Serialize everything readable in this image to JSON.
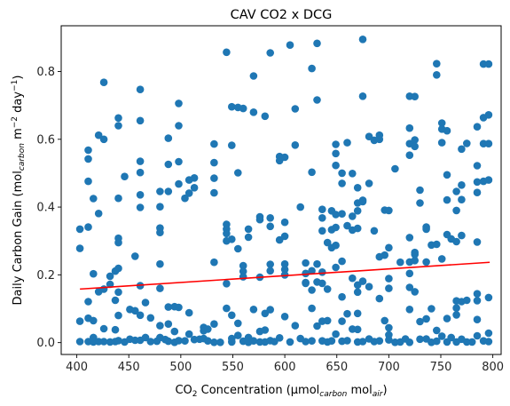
{
  "chart_data": {
    "type": "scatter",
    "title": "CAV CO2 x DCG",
    "xlabel": {
      "prefix": "CO",
      "sub1": "2",
      "mid": " Concentration (μmol",
      "sub2": "carbon",
      "mid2": " mol",
      "sub3": "air",
      "suffix": ")"
    },
    "ylabel": {
      "prefix": "Daily Carbon Gain (mol",
      "sub1": "carbon",
      "mid": " m",
      "sup1": "−2",
      "mid2": " day",
      "sup2": "−1",
      "suffix": ")"
    },
    "xlim": [
      385,
      808
    ],
    "ylim": [
      -0.035,
      0.935
    ],
    "xticks": [
      400,
      450,
      500,
      550,
      600,
      650,
      700,
      750,
      800
    ],
    "yticks": [
      0.0,
      0.2,
      0.4,
      0.6,
      0.8
    ],
    "ytick_labels": [
      "0.0",
      "0.2",
      "0.4",
      "0.6",
      "0.8"
    ],
    "colors": {
      "points": "#1f77b4",
      "trend": "#ff0000"
    },
    "trendline": {
      "x": [
        403,
        797
      ],
      "y": [
        0.158,
        0.237
      ]
    },
    "points": [
      [
        403,
        0.335
      ],
      [
        403,
        0.278
      ],
      [
        403,
        0.063
      ],
      [
        403,
        0.003
      ],
      [
        411,
        0.568
      ],
      [
        411,
        0.542
      ],
      [
        411,
        0.476
      ],
      [
        411,
        0.341
      ],
      [
        411,
        0.121
      ],
      [
        411,
        0.072
      ],
      [
        411,
        0.003
      ],
      [
        416,
        0.425
      ],
      [
        416,
        0.203
      ],
      [
        416,
        0.065
      ],
      [
        416,
        0.015
      ],
      [
        416,
        0.002
      ],
      [
        421,
        0.612
      ],
      [
        421,
        0.381
      ],
      [
        421,
        0.15
      ],
      [
        421,
        0.003
      ],
      [
        426,
        0.768
      ],
      [
        426,
        0.6
      ],
      [
        426,
        0.158
      ],
      [
        426,
        0.041
      ],
      [
        426,
        0.003
      ],
      [
        432,
        0.196
      ],
      [
        432,
        0.172
      ],
      [
        432,
        0.002
      ],
      [
        437,
        0.211
      ],
      [
        437,
        0.125
      ],
      [
        437,
        0.038
      ],
      [
        437,
        0.003
      ],
      [
        440,
        0.663
      ],
      [
        440,
        0.64
      ],
      [
        440,
        0.426
      ],
      [
        440,
        0.308
      ],
      [
        440,
        0.295
      ],
      [
        440,
        0.219
      ],
      [
        440,
        0.149
      ],
      [
        440,
        0.08
      ],
      [
        440,
        0.006
      ],
      [
        446,
        0.49
      ],
      [
        446,
        0.002
      ],
      [
        451,
        0.098
      ],
      [
        451,
        0.01
      ],
      [
        456,
        0.255
      ],
      [
        456,
        0.094
      ],
      [
        456,
        0.007
      ],
      [
        461,
        0.747
      ],
      [
        461,
        0.655
      ],
      [
        461,
        0.535
      ],
      [
        461,
        0.502
      ],
      [
        461,
        0.436
      ],
      [
        461,
        0.399
      ],
      [
        461,
        0.168
      ],
      [
        461,
        0.081
      ],
      [
        461,
        0.007
      ],
      [
        466,
        0.118
      ],
      [
        466,
        0.015
      ],
      [
        471,
        0.073
      ],
      [
        471,
        0.003
      ],
      [
        477,
        0.004
      ],
      [
        480,
        0.446
      ],
      [
        480,
        0.401
      ],
      [
        480,
        0.338
      ],
      [
        480,
        0.325
      ],
      [
        480,
        0.232
      ],
      [
        480,
        0.16
      ],
      [
        480,
        0.05
      ],
      [
        480,
        0.015
      ],
      [
        485,
        0.009
      ],
      [
        488,
        0.603
      ],
      [
        488,
        0.526
      ],
      [
        488,
        0.446
      ],
      [
        488,
        0.105
      ],
      [
        488,
        0.055
      ],
      [
        488,
        0.004
      ],
      [
        494,
        0.106
      ],
      [
        494,
        0.033
      ],
      [
        494,
        0.001
      ],
      [
        498,
        0.706
      ],
      [
        498,
        0.64
      ],
      [
        498,
        0.534
      ],
      [
        498,
        0.468
      ],
      [
        498,
        0.104
      ],
      [
        498,
        0.006
      ],
      [
        504,
        0.426
      ],
      [
        504,
        0.005
      ],
      [
        508,
        0.48
      ],
      [
        508,
        0.441
      ],
      [
        508,
        0.088
      ],
      [
        508,
        0.025
      ],
      [
        513,
        0.486
      ],
      [
        513,
        0.457
      ],
      [
        513,
        0.009
      ],
      [
        518,
        0.01
      ],
      [
        522,
        0.045
      ],
      [
        522,
        0.035
      ],
      [
        522,
        0.012
      ],
      [
        526,
        0.04
      ],
      [
        526,
        0.005
      ],
      [
        532,
        0.586
      ],
      [
        532,
        0.531
      ],
      [
        532,
        0.485
      ],
      [
        532,
        0.442
      ],
      [
        532,
        0.237
      ],
      [
        532,
        0.055
      ],
      [
        532,
        0.001
      ],
      [
        538,
        0.001
      ],
      [
        544,
        0.857
      ],
      [
        544,
        0.349
      ],
      [
        544,
        0.335
      ],
      [
        544,
        0.322
      ],
      [
        544,
        0.3
      ],
      [
        544,
        0.174
      ],
      [
        544,
        0.101
      ],
      [
        549,
        0.696
      ],
      [
        549,
        0.582
      ],
      [
        549,
        0.305
      ],
      [
        549,
        0.081
      ],
      [
        549,
        0.012
      ],
      [
        549,
        0.002
      ],
      [
        555,
        0.694
      ],
      [
        555,
        0.501
      ],
      [
        555,
        0.277
      ],
      [
        555,
        0.057
      ],
      [
        555,
        0.021
      ],
      [
        560,
        0.691
      ],
      [
        560,
        0.227
      ],
      [
        560,
        0.21
      ],
      [
        560,
        0.194
      ],
      [
        560,
        0.004
      ],
      [
        565,
        0.335
      ],
      [
        565,
        0.311
      ],
      [
        565,
        0.015
      ],
      [
        565,
        0.001
      ],
      [
        570,
        0.787
      ],
      [
        570,
        0.68
      ],
      [
        570,
        0.098
      ],
      [
        570,
        0.005
      ],
      [
        576,
        0.371
      ],
      [
        576,
        0.363
      ],
      [
        576,
        0.193
      ],
      [
        576,
        0.033
      ],
      [
        576,
        0.002
      ],
      [
        581,
        0.668
      ],
      [
        581,
        0.086
      ],
      [
        581,
        0.037
      ],
      [
        581,
        0.002
      ],
      [
        586,
        0.855
      ],
      [
        586,
        0.368
      ],
      [
        586,
        0.343
      ],
      [
        586,
        0.231
      ],
      [
        586,
        0.212
      ],
      [
        586,
        0.097
      ],
      [
        586,
        0.006
      ],
      [
        590,
        0.003
      ],
      [
        595,
        0.549
      ],
      [
        595,
        0.537
      ],
      [
        595,
        0.303
      ],
      [
        595,
        0.014
      ],
      [
        600,
        0.547
      ],
      [
        600,
        0.355
      ],
      [
        600,
        0.314
      ],
      [
        600,
        0.232
      ],
      [
        600,
        0.216
      ],
      [
        600,
        0.2
      ],
      [
        600,
        0.077
      ],
      [
        605,
        0.878
      ],
      [
        605,
        0.002
      ],
      [
        610,
        0.69
      ],
      [
        610,
        0.583
      ],
      [
        610,
        0.05
      ],
      [
        615,
        0.4
      ],
      [
        615,
        0.012
      ],
      [
        620,
        0.235
      ],
      [
        620,
        0.204
      ],
      [
        620,
        0.177
      ],
      [
        620,
        0.175
      ],
      [
        620,
        0.003
      ],
      [
        626,
        0.809
      ],
      [
        626,
        0.503
      ],
      [
        626,
        0.212
      ],
      [
        626,
        0.155
      ],
      [
        626,
        0.101
      ],
      [
        626,
        0.005
      ],
      [
        631,
        0.883
      ],
      [
        631,
        0.716
      ],
      [
        631,
        0.232
      ],
      [
        631,
        0.179
      ],
      [
        631,
        0.049
      ],
      [
        636,
        0.393
      ],
      [
        636,
        0.368
      ],
      [
        636,
        0.33
      ],
      [
        636,
        0.208
      ],
      [
        636,
        0.175
      ],
      [
        636,
        0.063
      ],
      [
        636,
        0.005
      ],
      [
        641,
        0.295
      ],
      [
        641,
        0.158
      ],
      [
        641,
        0.065
      ],
      [
        641,
        0.002
      ],
      [
        645,
        0.389
      ],
      [
        645,
        0.333
      ],
      [
        645,
        0.28
      ],
      [
        645,
        0.005
      ],
      [
        649,
        0.585
      ],
      [
        649,
        0.558
      ],
      [
        649,
        0.523
      ],
      [
        649,
        0.378
      ],
      [
        649,
        0.34
      ],
      [
        649,
        0.287
      ],
      [
        649,
        0.222
      ],
      [
        649,
        0.025
      ],
      [
        655,
        0.5
      ],
      [
        655,
        0.47
      ],
      [
        655,
        0.38
      ],
      [
        655,
        0.24
      ],
      [
        655,
        0.135
      ],
      [
        655,
        0.063
      ],
      [
        655,
        0.004
      ],
      [
        660,
        0.59
      ],
      [
        660,
        0.345
      ],
      [
        660,
        0.085
      ],
      [
        660,
        0.006
      ],
      [
        665,
        0.499
      ],
      [
        665,
        0.373
      ],
      [
        665,
        0.332
      ],
      [
        665,
        0.19
      ],
      [
        665,
        0.04
      ],
      [
        670,
        0.457
      ],
      [
        670,
        0.412
      ],
      [
        670,
        0.389
      ],
      [
        670,
        0.337
      ],
      [
        670,
        0.17
      ],
      [
        670,
        0.149
      ],
      [
        670,
        0.086
      ],
      [
        670,
        0.039
      ],
      [
        670,
        0.002
      ],
      [
        675,
        0.895
      ],
      [
        675,
        0.727
      ],
      [
        675,
        0.42
      ],
      [
        675,
        0.416
      ],
      [
        675,
        0.181
      ],
      [
        675,
        0.003
      ],
      [
        681,
        0.608
      ],
      [
        681,
        0.47
      ],
      [
        681,
        0.165
      ],
      [
        681,
        0.011
      ],
      [
        686,
        0.597
      ],
      [
        686,
        0.33
      ],
      [
        686,
        0.003
      ],
      [
        691,
        0.612
      ],
      [
        691,
        0.6
      ],
      [
        691,
        0.253
      ],
      [
        691,
        0.13
      ],
      [
        691,
        0.005
      ],
      [
        696,
        0.391
      ],
      [
        696,
        0.258
      ],
      [
        696,
        0.065
      ],
      [
        700,
        0.39
      ],
      [
        700,
        0.28
      ],
      [
        700,
        0.189
      ],
      [
        700,
        0.16
      ],
      [
        700,
        0.044
      ],
      [
        700,
        0.023
      ],
      [
        700,
        0.008
      ],
      [
        706,
        0.513
      ],
      [
        706,
        0.001
      ],
      [
        711,
        0.237
      ],
      [
        711,
        0.002
      ],
      [
        716,
        0.011
      ],
      [
        720,
        0.727
      ],
      [
        720,
        0.633
      ],
      [
        720,
        0.587
      ],
      [
        720,
        0.553
      ],
      [
        720,
        0.31
      ],
      [
        720,
        0.238
      ],
      [
        720,
        0.204
      ],
      [
        720,
        0.163
      ],
      [
        720,
        0.098
      ],
      [
        720,
        0.001
      ],
      [
        725,
        0.726
      ],
      [
        725,
        0.598
      ],
      [
        725,
        0.579
      ],
      [
        725,
        0.266
      ],
      [
        725,
        0.26
      ],
      [
        725,
        0.242
      ],
      [
        725,
        0.15
      ],
      [
        730,
        0.45
      ],
      [
        730,
        0.412
      ],
      [
        730,
        0.062
      ],
      [
        730,
        0.01
      ],
      [
        736,
        0.341
      ],
      [
        736,
        0.335
      ],
      [
        736,
        0.238
      ],
      [
        736,
        0.07
      ],
      [
        736,
        0.011
      ],
      [
        741,
        0.288
      ],
      [
        741,
        0.1
      ],
      [
        741,
        0.001
      ],
      [
        746,
        0.823
      ],
      [
        746,
        0.79
      ],
      [
        746,
        0.29
      ],
      [
        746,
        0.036
      ],
      [
        746,
        0.004
      ],
      [
        751,
        0.648
      ],
      [
        751,
        0.63
      ],
      [
        751,
        0.59
      ],
      [
        751,
        0.247
      ],
      [
        751,
        0.019
      ],
      [
        756,
        0.625
      ],
      [
        756,
        0.495
      ],
      [
        756,
        0.421
      ],
      [
        756,
        0.319
      ],
      [
        756,
        0.071
      ],
      [
        756,
        0.002
      ],
      [
        760,
        0.306
      ],
      [
        760,
        0.015
      ],
      [
        765,
        0.446
      ],
      [
        765,
        0.39
      ],
      [
        765,
        0.298
      ],
      [
        765,
        0.123
      ],
      [
        765,
        0.102
      ],
      [
        765,
        0.082
      ],
      [
        765,
        0.002
      ],
      [
        770,
        0.571
      ],
      [
        770,
        0.465
      ],
      [
        770,
        0.422
      ],
      [
        770,
        0.316
      ],
      [
        770,
        0.121
      ],
      [
        770,
        0.01
      ],
      [
        775,
        0.588
      ],
      [
        775,
        0.125
      ],
      [
        775,
        0.002
      ],
      [
        780,
        0.002
      ],
      [
        785,
        0.637
      ],
      [
        785,
        0.522
      ],
      [
        785,
        0.474
      ],
      [
        785,
        0.443
      ],
      [
        785,
        0.297
      ],
      [
        785,
        0.144
      ],
      [
        785,
        0.124
      ],
      [
        785,
        0.068
      ],
      [
        785,
        0.02
      ],
      [
        791,
        0.822
      ],
      [
        791,
        0.664
      ],
      [
        791,
        0.587
      ],
      [
        791,
        0.476
      ],
      [
        791,
        0.005
      ],
      [
        796,
        0.822
      ],
      [
        796,
        0.672
      ],
      [
        796,
        0.587
      ],
      [
        796,
        0.48
      ],
      [
        796,
        0.133
      ],
      [
        796,
        0.028
      ],
      [
        796,
        0.003
      ]
    ]
  }
}
